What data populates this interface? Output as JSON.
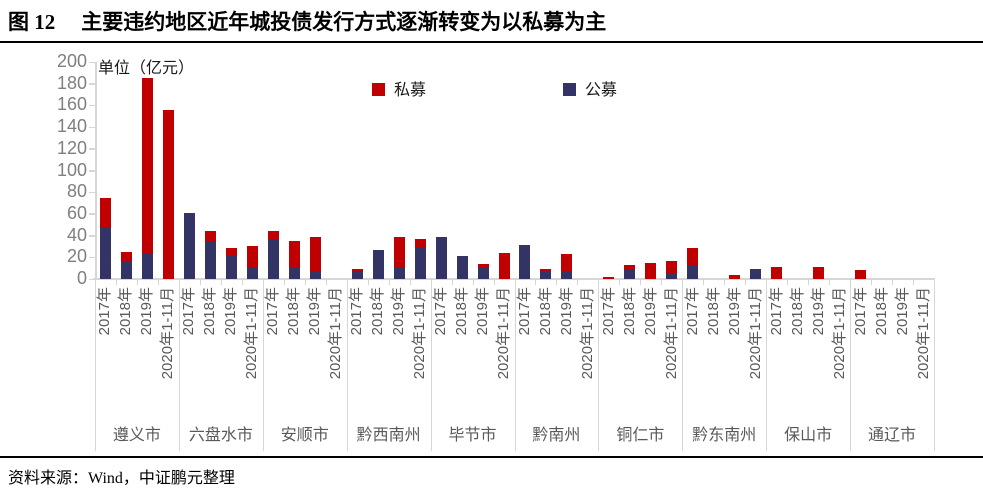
{
  "figure": {
    "label": "图 12",
    "title": "主要违约地区近年城投债发行方式逐渐转变为以私募为主"
  },
  "source": "资料来源：Wind，中证鹏元整理",
  "chart_data": {
    "type": "bar",
    "subtype": "stacked",
    "unit_label": "单位（亿元）",
    "ylim": [
      0,
      200
    ],
    "ytick_step": 20,
    "yticks": [
      0,
      20,
      40,
      60,
      80,
      100,
      120,
      140,
      160,
      180,
      200
    ],
    "grid": "off",
    "legend_position": "top-center",
    "legend": [
      {
        "name": "私募",
        "color": "#C00000",
        "series_key": "private"
      },
      {
        "name": "公募",
        "color": "#333366",
        "series_key": "public"
      }
    ],
    "colors": {
      "axis_line": "#D6D6D6",
      "y_tick_label": "#7F7F7F",
      "x_label": "#595959"
    },
    "year_labels": [
      "2017年",
      "2018年",
      "2019年",
      "2020年1-11月"
    ],
    "groups": [
      {
        "city": "遵义市",
        "public": [
          47,
          17,
          23,
          0
        ],
        "private": [
          28,
          8,
          162,
          156
        ]
      },
      {
        "city": "六盘水市",
        "public": [
          61,
          35,
          21,
          10
        ],
        "private": [
          0,
          9,
          8,
          20
        ]
      },
      {
        "city": "安顺市",
        "public": [
          37,
          10,
          6,
          0
        ],
        "private": [
          7,
          25,
          33,
          0
        ]
      },
      {
        "city": "黔西南州",
        "public": [
          7,
          27,
          10,
          29
        ],
        "private": [
          2,
          0,
          29,
          8
        ]
      },
      {
        "city": "毕节市",
        "public": [
          39,
          21,
          10,
          0
        ],
        "private": [
          0,
          0,
          4,
          24
        ]
      },
      {
        "city": "黔南州",
        "public": [
          31,
          6,
          7,
          0
        ],
        "private": [
          0,
          3,
          16,
          0
        ]
      },
      {
        "city": "铜仁市",
        "public": [
          0,
          9,
          0,
          5
        ],
        "private": [
          2,
          4,
          15,
          12
        ]
      },
      {
        "city": "黔东南州",
        "public": [
          13,
          0,
          0,
          9
        ],
        "private": [
          16,
          0,
          4,
          0
        ]
      },
      {
        "city": "保山市",
        "public": [
          0,
          0,
          0,
          0
        ],
        "private": [
          11,
          0,
          11,
          0
        ]
      },
      {
        "city": "通辽市",
        "public": [
          0,
          0,
          0,
          0
        ],
        "private": [
          8,
          0,
          0,
          0
        ]
      }
    ]
  }
}
